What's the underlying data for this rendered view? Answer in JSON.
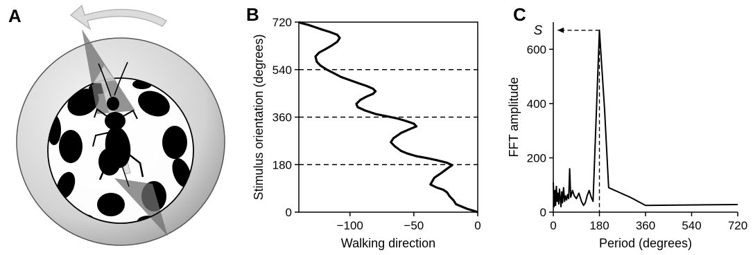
{
  "panels": {
    "a": {
      "label": "A"
    },
    "b": {
      "label": "B"
    },
    "c": {
      "label": "C"
    }
  },
  "colors": {
    "sphere_light": "#f4f4f4",
    "sphere_dark": "#9a9a9a",
    "triangle": "#6f6f6f",
    "arrow": "#dcdcdc",
    "ink": "#000000"
  },
  "chart_data": [
    {
      "panel": "B",
      "type": "line",
      "xlabel": "Walking direction",
      "ylabel": "Stimulus orientation (degrees)",
      "xlim": [
        -140,
        0
      ],
      "ylim": [
        0,
        720
      ],
      "xticks": [
        -100,
        -50,
        0
      ],
      "yticks": [
        0,
        180,
        360,
        540,
        720
      ],
      "reference_lines_y": [
        180,
        360,
        540
      ],
      "points": [
        [
          0,
          0
        ],
        [
          -3,
          5
        ],
        [
          -8,
          12
        ],
        [
          -12,
          20
        ],
        [
          -17,
          30
        ],
        [
          -19,
          45
        ],
        [
          -22,
          60
        ],
        [
          -24,
          75
        ],
        [
          -27,
          85
        ],
        [
          -32,
          93
        ],
        [
          -37,
          105
        ],
        [
          -34,
          130
        ],
        [
          -28,
          150
        ],
        [
          -23,
          168
        ],
        [
          -20,
          178
        ],
        [
          -24,
          187
        ],
        [
          -32,
          197
        ],
        [
          -40,
          205
        ],
        [
          -48,
          212
        ],
        [
          -55,
          222
        ],
        [
          -60,
          232
        ],
        [
          -65,
          250
        ],
        [
          -68,
          265
        ],
        [
          -66,
          280
        ],
        [
          -60,
          300
        ],
        [
          -53,
          315
        ],
        [
          -48,
          325
        ],
        [
          -50,
          335
        ],
        [
          -56,
          345
        ],
        [
          -63,
          355
        ],
        [
          -70,
          362
        ],
        [
          -80,
          372
        ],
        [
          -88,
          385
        ],
        [
          -94,
          398
        ],
        [
          -95,
          410
        ],
        [
          -92,
          425
        ],
        [
          -87,
          438
        ],
        [
          -82,
          448
        ],
        [
          -80,
          458
        ],
        [
          -82,
          468
        ],
        [
          -87,
          478
        ],
        [
          -93,
          488
        ],
        [
          -100,
          500
        ],
        [
          -107,
          512
        ],
        [
          -112,
          525
        ],
        [
          -118,
          540
        ],
        [
          -123,
          555
        ],
        [
          -126,
          570
        ],
        [
          -127,
          590
        ],
        [
          -124,
          605
        ],
        [
          -119,
          618
        ],
        [
          -114,
          632
        ],
        [
          -110,
          645
        ],
        [
          -108,
          660
        ],
        [
          -110,
          672
        ],
        [
          -116,
          683
        ],
        [
          -122,
          692
        ],
        [
          -128,
          702
        ],
        [
          -133,
          710
        ],
        [
          -138,
          716
        ],
        [
          -140,
          720
        ]
      ]
    },
    {
      "panel": "C",
      "type": "line",
      "xlabel": "Period (degrees)",
      "ylabel": "FFT amplitude",
      "xlim": [
        0,
        720
      ],
      "ylim": [
        0,
        700
      ],
      "xticks": [
        0,
        180,
        360,
        540,
        720
      ],
      "yticks": [
        0,
        200,
        400,
        600
      ],
      "peak": {
        "label": "S",
        "x": 180,
        "y": 670
      },
      "points": [
        [
          0,
          110
        ],
        [
          3,
          20
        ],
        [
          6,
          80
        ],
        [
          9,
          25
        ],
        [
          12,
          95
        ],
        [
          15,
          40
        ],
        [
          18,
          70
        ],
        [
          21,
          30
        ],
        [
          24,
          85
        ],
        [
          27,
          50
        ],
        [
          30,
          20
        ],
        [
          33,
          75
        ],
        [
          36,
          35
        ],
        [
          40,
          90
        ],
        [
          44,
          40
        ],
        [
          48,
          60
        ],
        [
          52,
          45
        ],
        [
          56,
          65
        ],
        [
          60,
          50
        ],
        [
          64,
          160
        ],
        [
          68,
          55
        ],
        [
          75,
          80
        ],
        [
          82,
          60
        ],
        [
          90,
          50
        ],
        [
          100,
          70
        ],
        [
          110,
          40
        ],
        [
          118,
          25
        ],
        [
          125,
          35
        ],
        [
          132,
          60
        ],
        [
          140,
          80
        ],
        [
          148,
          55
        ],
        [
          155,
          40
        ],
        [
          180,
          670
        ],
        [
          200,
          380
        ],
        [
          216,
          90
        ],
        [
          300,
          55
        ],
        [
          360,
          25
        ],
        [
          720,
          28
        ]
      ]
    }
  ]
}
